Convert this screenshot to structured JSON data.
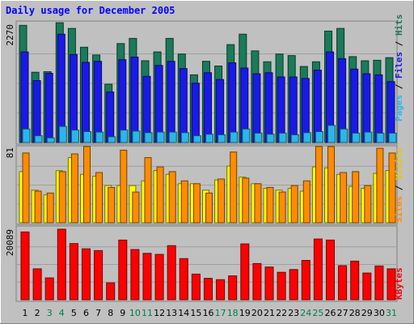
{
  "chart_data": [
    {
      "type": "bar",
      "title": "Daily usage for December 2005",
      "panel": "hits-files-pages",
      "y_max_label": "2270",
      "ylim": [
        0,
        2270
      ],
      "categories": [
        "1",
        "2",
        "3",
        "4",
        "5",
        "6",
        "7",
        "8",
        "9",
        "10",
        "11",
        "12",
        "13",
        "14",
        "15",
        "16",
        "17",
        "18",
        "19",
        "20",
        "21",
        "22",
        "23",
        "24",
        "25",
        "26",
        "27",
        "28",
        "29",
        "30",
        "31"
      ],
      "weekend_days": [
        "3",
        "4",
        "10",
        "11",
        "17",
        "18",
        "24",
        "25",
        "31"
      ],
      "series": [
        {
          "name": "Hits",
          "color": "#1a7a5a",
          "values": [
            2250,
            1350,
            1360,
            2300,
            2190,
            1830,
            1680,
            1120,
            1900,
            2000,
            1570,
            1740,
            2000,
            1700,
            1300,
            1560,
            1470,
            1880,
            2080,
            1760,
            1550,
            1700,
            1670,
            1460,
            1550,
            2140,
            2190,
            1650,
            1570,
            1580,
            1630
          ]
        },
        {
          "name": "Files",
          "color": "#1a1ae6",
          "values": [
            1740,
            1190,
            1330,
            2080,
            1690,
            1540,
            1560,
            970,
            1590,
            1640,
            1270,
            1480,
            1560,
            1420,
            1140,
            1340,
            1210,
            1530,
            1430,
            1320,
            1340,
            1260,
            1260,
            1230,
            1390,
            1740,
            1610,
            1410,
            1320,
            1300,
            1170
          ]
        },
        {
          "name": "Pages",
          "color": "#2bb6ea",
          "values": [
            260,
            130,
            90,
            310,
            240,
            210,
            200,
            110,
            240,
            220,
            190,
            200,
            200,
            190,
            130,
            160,
            150,
            200,
            260,
            180,
            160,
            180,
            150,
            190,
            210,
            330,
            260,
            180,
            200,
            180,
            180
          ]
        }
      ],
      "ylabel": [
        "Pages",
        "Files",
        "Hits"
      ]
    },
    {
      "type": "bar",
      "panel": "sites-visits",
      "y_max_label": "81",
      "ylim": [
        0,
        81
      ],
      "categories": [
        "1",
        "2",
        "3",
        "4",
        "5",
        "6",
        "7",
        "8",
        "9",
        "10",
        "11",
        "12",
        "13",
        "14",
        "15",
        "16",
        "17",
        "18",
        "19",
        "20",
        "21",
        "22",
        "23",
        "24",
        "25",
        "26",
        "27",
        "28",
        "29",
        "30",
        "31"
      ],
      "series": [
        {
          "name": "Sites",
          "color": "#ffff00",
          "values": [
            55,
            35,
            30,
            56,
            70,
            52,
            50,
            40,
            40,
            40,
            45,
            56,
            52,
            42,
            42,
            35,
            46,
            61,
            49,
            42,
            37,
            35,
            37,
            34,
            60,
            59,
            52,
            39,
            37,
            53,
            56
          ]
        },
        {
          "name": "Visits",
          "color": "#ff8c00",
          "values": [
            75,
            34,
            32,
            55,
            74,
            82,
            54,
            38,
            78,
            33,
            70,
            60,
            55,
            45,
            42,
            32,
            47,
            76,
            48,
            42,
            38,
            33,
            40,
            45,
            82,
            82,
            54,
            55,
            40,
            80,
            75
          ]
        }
      ],
      "ylabel": [
        "Sites",
        "Visits"
      ]
    },
    {
      "type": "bar",
      "panel": "kbytes",
      "y_max_label": "20089",
      "ylim": [
        0,
        20089
      ],
      "categories": [
        "1",
        "2",
        "3",
        "4",
        "5",
        "6",
        "7",
        "8",
        "9",
        "10",
        "11",
        "12",
        "13",
        "14",
        "15",
        "16",
        "17",
        "18",
        "19",
        "20",
        "21",
        "22",
        "23",
        "24",
        "25",
        "26",
        "27",
        "28",
        "29",
        "30",
        "31"
      ],
      "series": [
        {
          "name": "KBytes",
          "color": "#ff0000",
          "values": [
            19300,
            8800,
            6200,
            20100,
            16000,
            14500,
            14000,
            4800,
            17000,
            14300,
            13200,
            12900,
            15400,
            11700,
            7300,
            6100,
            5700,
            6800,
            15900,
            10300,
            9300,
            7800,
            8600,
            11200,
            17300,
            17000,
            9700,
            11000,
            7600,
            9600,
            8800
          ]
        }
      ],
      "ylabel": [
        "KBytes"
      ]
    }
  ],
  "side_labels": {
    "pages": "Pages",
    "files": "Files",
    "hits": "Hits",
    "sites": "Sites",
    "visits": "Visits",
    "kbytes": "KBytes",
    "sep": " / "
  },
  "colors": {
    "page_bg": "#c0c0c0",
    "plot_bg": "#c0c0c0",
    "title": "#0000ff",
    "weekday_label": "#000000",
    "weekend_label": "#00804a",
    "grid": "#a0a0a0"
  }
}
